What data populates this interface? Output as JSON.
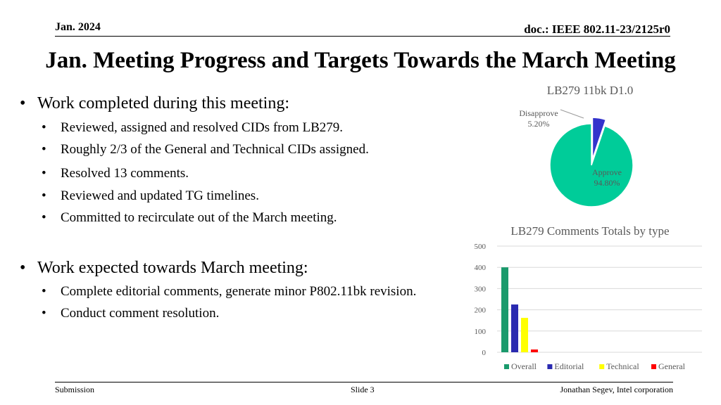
{
  "header": {
    "date": "Jan. 2024",
    "doc": "doc.: IEEE 802.11-23/2125r0"
  },
  "title": "Jan. Meeting Progress and Targets Towards the March Meeting",
  "sections": [
    {
      "heading": "Work completed during this meeting:",
      "items": [
        "Reviewed, assigned and resolved CIDs from LB279.",
        "Roughly 2/3 of the General and Technical CIDs assigned.",
        "Resolved 13 comments.",
        "Reviewed and updated TG timelines.",
        "Committed to recirculate out of the March meeting."
      ]
    },
    {
      "heading": "Work expected towards March meeting:",
      "items": [
        "Complete editorial comments, generate minor P802.11bk revision.",
        "Conduct comment resolution."
      ]
    }
  ],
  "chart_data": [
    {
      "type": "pie",
      "title": "LB279 11bk D1.0",
      "categories": [
        "Disapprove",
        "Approve"
      ],
      "values": [
        5.2,
        94.8
      ],
      "labels": [
        "5.20%",
        "94.80%"
      ],
      "colors": [
        "#3333cc",
        "#00cc99"
      ]
    },
    {
      "type": "bar",
      "title": "LB279 Comments Totals by type",
      "categories": [
        ""
      ],
      "series": [
        {
          "name": "Overall",
          "values": [
            400
          ],
          "color": "#1a9a6c"
        },
        {
          "name": "Editorial",
          "values": [
            225
          ],
          "color": "#2a2ab0"
        },
        {
          "name": "Technical",
          "values": [
            162
          ],
          "color": "#ffff00"
        },
        {
          "name": "General",
          "values": [
            13
          ],
          "color": "#ff0000"
        }
      ],
      "ylim": [
        0,
        500
      ],
      "yticks": [
        "0",
        "100",
        "200",
        "300",
        "400",
        "500"
      ],
      "grid": true,
      "legend": "bottom"
    }
  ],
  "footer": {
    "left": "Submission",
    "center": "Slide 3",
    "right": "Jonathan Segev, Intel corporation"
  }
}
